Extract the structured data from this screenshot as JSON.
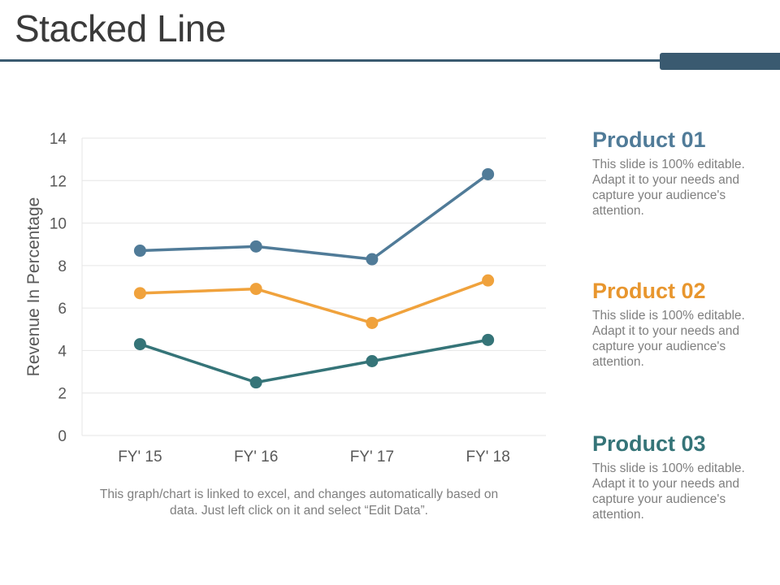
{
  "page": {
    "title": "Stacked Line"
  },
  "note": "This graph/chart is linked to excel, and changes automatically based on data. Just left click on it and select “Edit Data”.",
  "products": [
    {
      "name": "Product 01",
      "color": "#507b98",
      "desc": "This slide is 100% editable. Adapt it to your needs and capture your audience's attention."
    },
    {
      "name": "Product 02",
      "color": "#e8962e",
      "desc": "This slide is 100% editable. Adapt it to your needs and capture your audience's attention."
    },
    {
      "name": "Product 03",
      "color": "#357478",
      "desc": "This slide is 100% editable. Adapt it to your needs and capture your audience's attention."
    }
  ],
  "chart_data": {
    "type": "line",
    "title": "",
    "xlabel": "",
    "ylabel": "Revenue In Percentage",
    "categories": [
      "FY' 15",
      "FY' 16",
      "FY' 17",
      "FY' 18"
    ],
    "ylim": [
      0,
      14
    ],
    "yticks": [
      0,
      2,
      4,
      6,
      8,
      10,
      12,
      14
    ],
    "grid": true,
    "series": [
      {
        "color": "#507b98",
        "values": [
          8.7,
          8.9,
          8.3,
          12.3
        ]
      },
      {
        "color": "#f0a23c",
        "values": [
          6.7,
          6.9,
          5.3,
          7.3
        ]
      },
      {
        "color": "#357478",
        "values": [
          4.3,
          2.5,
          3.5,
          4.5
        ]
      }
    ]
  }
}
